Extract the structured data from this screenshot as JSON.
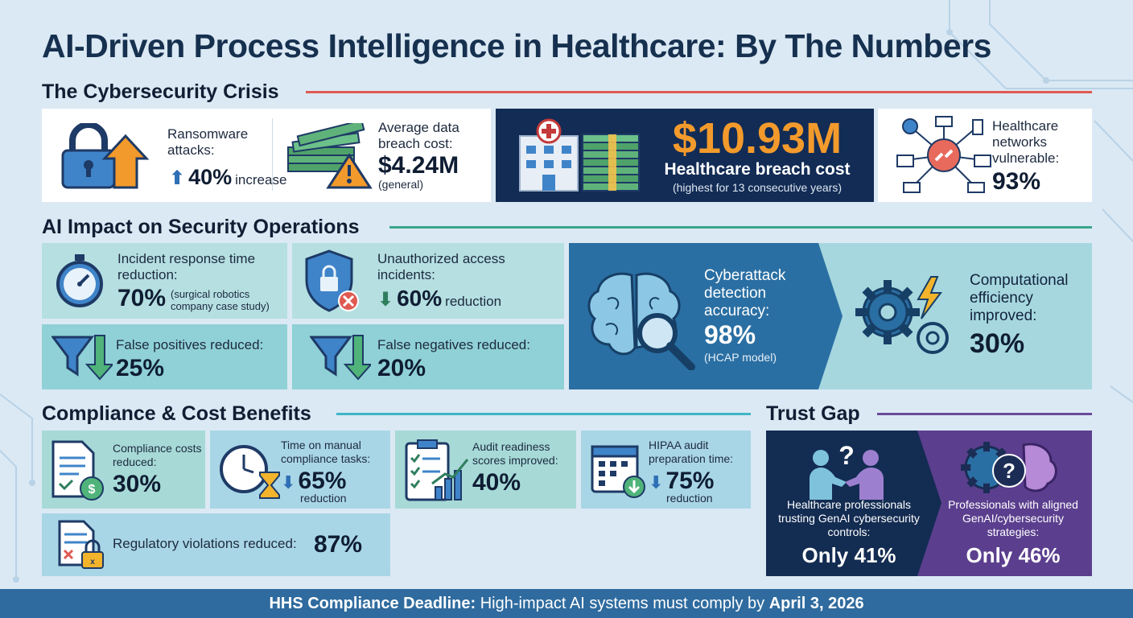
{
  "title": "AI-Driven Process Intelligence in Healthcare: By The Numbers",
  "sections": {
    "cyber": "The Cybersecurity Crisis",
    "ai": "AI Impact on Security Operations",
    "compliance": "Compliance & Cost Benefits",
    "trust": "Trust Gap"
  },
  "colors": {
    "cyber_rule": "#e05a52",
    "ai_rule": "#3aa58a",
    "compliance_rule": "#3fb6c6",
    "trust_rule": "#6b4a9a",
    "accent_orange": "#f39a2c",
    "navy": "#122c55",
    "purple": "#5b3f8e"
  },
  "cyber": {
    "ransomware": {
      "label": "Ransomware attacks:",
      "value": "40%",
      "suffix": "increase",
      "icon": "lock-arrow-up-icon"
    },
    "avg_breach": {
      "label": "Average data breach cost:",
      "value": "$4.24M",
      "note": "(general)",
      "icon": "money-warning-icon"
    },
    "hc_breach": {
      "value": "$10.93M",
      "label": "Healthcare breach cost",
      "note": "(highest for 13 consecutive years)",
      "icon": "hospital-money-icon"
    },
    "networks": {
      "label": "Healthcare networks vulnerable:",
      "value": "93%",
      "icon": "network-broken-link-icon"
    }
  },
  "ai": {
    "incident": {
      "label": "Incident response time reduction:",
      "value": "70%",
      "note": "(surgical robotics company case study)",
      "icon": "stopwatch-icon"
    },
    "unauthorized": {
      "label": "Unauthorized access incidents:",
      "value": "60%",
      "suffix": "reduction",
      "icon": "shield-lock-icon"
    },
    "false_pos": {
      "label": "False positives reduced:",
      "value": "25%",
      "icon": "funnel-down-icon"
    },
    "false_neg": {
      "label": "False negatives reduced:",
      "value": "20%",
      "icon": "funnel-down-icon"
    },
    "detection": {
      "label": "Cyberattack detection accuracy:",
      "value": "98%",
      "note": "(HCAP model)",
      "icon": "brain-magnifier-icon"
    },
    "efficiency": {
      "label": "Computational efficiency improved:",
      "value": "30%",
      "icon": "gears-lightning-icon"
    }
  },
  "compliance": {
    "costs": {
      "label": "Compliance costs reduced:",
      "value": "30%",
      "icon": "document-dollar-icon"
    },
    "manual": {
      "label": "Time on manual compliance tasks:",
      "value": "65%",
      "suffix": "reduction",
      "icon": "clock-hourglass-icon"
    },
    "audit": {
      "label": "Audit readiness scores improved:",
      "value": "40%",
      "icon": "clipboard-chart-icon"
    },
    "hipaa": {
      "label": "HIPAA audit preparation time:",
      "value": "75%",
      "suffix": "reduction",
      "icon": "calendar-down-icon"
    },
    "violations": {
      "label": "Regulatory violations reduced:",
      "value": "87%",
      "icon": "document-lock-icon"
    }
  },
  "trust": {
    "left": {
      "label": "Healthcare professionals trusting GenAI cybersecurity controls:",
      "value": "Only 41%",
      "icon": "handshake-question-icon"
    },
    "right": {
      "label": "Professionals with aligned GenAI/cybersecurity strategies:",
      "value": "Only 46%",
      "icon": "gear-question-brain-icon"
    }
  },
  "footer": {
    "lead": "HHS Compliance Deadline:",
    "text": "High-impact AI systems must comply by",
    "date": "April 3, 2026"
  }
}
